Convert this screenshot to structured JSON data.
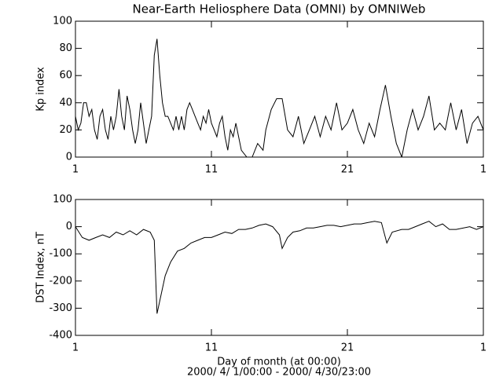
{
  "chart_data": [
    {
      "type": "line",
      "title": "Near-Earth Heliosphere Data (OMNI) by OMNIWeb",
      "ylabel": "Kp index",
      "xlim": [
        1,
        31
      ],
      "xticks": [
        1,
        11,
        21,
        {
          "value": 31,
          "label": "1"
        }
      ],
      "ylim": [
        0,
        100
      ],
      "yticks": [
        0,
        20,
        40,
        60,
        80,
        100
      ],
      "series": [
        {
          "name": "Kp index",
          "color": "#000000",
          "x": [
            1.0,
            1.2,
            1.4,
            1.6,
            1.8,
            2.0,
            2.2,
            2.4,
            2.6,
            2.8,
            3.0,
            3.2,
            3.4,
            3.6,
            3.8,
            4.0,
            4.2,
            4.4,
            4.6,
            4.8,
            5.0,
            5.2,
            5.4,
            5.6,
            5.8,
            6.0,
            6.2,
            6.4,
            6.6,
            6.8,
            7.0,
            7.2,
            7.4,
            7.6,
            7.8,
            8.0,
            8.2,
            8.4,
            8.6,
            8.8,
            9.0,
            9.2,
            9.4,
            9.6,
            9.8,
            10.0,
            10.2,
            10.4,
            10.6,
            10.8,
            11.0,
            11.2,
            11.4,
            11.6,
            11.8,
            12.0,
            12.2,
            12.4,
            12.6,
            12.8,
            13.0,
            13.2,
            13.6,
            14.0,
            14.4,
            14.8,
            15.0,
            15.4,
            15.8,
            16.2,
            16.6,
            17.0,
            17.4,
            17.8,
            18.2,
            18.6,
            19.0,
            19.4,
            19.8,
            20.2,
            20.6,
            21.0,
            21.4,
            21.8,
            22.2,
            22.6,
            23.0,
            23.4,
            23.8,
            24.2,
            24.6,
            25.0,
            25.4,
            25.8,
            26.2,
            26.6,
            27.0,
            27.4,
            27.8,
            28.2,
            28.6,
            29.0,
            29.4,
            29.8,
            30.2,
            30.6,
            31.0
          ],
          "values": [
            30,
            20,
            25,
            40,
            40,
            30,
            35,
            20,
            13,
            30,
            35,
            20,
            13,
            30,
            20,
            30,
            50,
            30,
            20,
            45,
            35,
            20,
            10,
            20,
            40,
            25,
            10,
            20,
            30,
            75,
            87,
            60,
            40,
            30,
            30,
            25,
            20,
            30,
            20,
            30,
            20,
            35,
            40,
            35,
            30,
            25,
            20,
            30,
            25,
            35,
            25,
            20,
            15,
            25,
            30,
            15,
            5,
            20,
            15,
            25,
            15,
            5,
            0,
            0,
            10,
            5,
            20,
            35,
            43,
            43,
            20,
            15,
            30,
            10,
            20,
            30,
            15,
            30,
            20,
            40,
            20,
            25,
            35,
            20,
            10,
            25,
            15,
            35,
            53,
            30,
            10,
            0,
            20,
            35,
            20,
            30,
            45,
            20,
            25,
            20,
            40,
            20,
            35,
            10,
            25,
            30,
            20
          ]
        }
      ]
    },
    {
      "type": "line",
      "ylabel": "DST Index, nT",
      "xlabel": "Day of month (at 00:00)",
      "subtitle": "2000/ 4/ 1/00:00 - 2000/ 4/30/23:00",
      "xlim": [
        1,
        31
      ],
      "xticks": [
        1,
        11,
        21,
        {
          "value": 31,
          "label": "1"
        }
      ],
      "ylim": [
        -400,
        100
      ],
      "yticks": [
        -400,
        -300,
        -200,
        -100,
        0,
        100
      ],
      "series": [
        {
          "name": "DST Index, nT",
          "color": "#000000",
          "x": [
            1,
            1.5,
            2,
            2.5,
            3,
            3.5,
            4,
            4.5,
            5,
            5.5,
            6,
            6.5,
            6.8,
            7.0,
            7.3,
            7.6,
            8,
            8.5,
            9,
            9.5,
            10,
            10.5,
            11,
            11.5,
            12,
            12.5,
            13,
            13.5,
            14,
            14.5,
            15,
            15.5,
            16,
            16.2,
            16.6,
            17,
            17.5,
            18,
            18.5,
            19,
            19.5,
            20,
            20.5,
            21,
            21.5,
            22,
            22.5,
            23,
            23.5,
            23.9,
            24.3,
            25,
            25.5,
            26,
            26.5,
            27,
            27.5,
            28,
            28.5,
            29,
            30,
            30.5,
            31
          ],
          "values": [
            0,
            -40,
            -50,
            -40,
            -30,
            -40,
            -20,
            -30,
            -15,
            -30,
            -10,
            -20,
            -50,
            -320,
            -250,
            -180,
            -130,
            -90,
            -80,
            -60,
            -50,
            -40,
            -40,
            -30,
            -20,
            -25,
            -10,
            -10,
            -5,
            5,
            10,
            0,
            -30,
            -80,
            -40,
            -20,
            -15,
            -5,
            -5,
            0,
            5,
            5,
            0,
            5,
            10,
            10,
            15,
            20,
            15,
            -60,
            -20,
            -10,
            -10,
            0,
            10,
            20,
            0,
            10,
            -10,
            -10,
            0,
            -10,
            0
          ]
        }
      ]
    }
  ]
}
